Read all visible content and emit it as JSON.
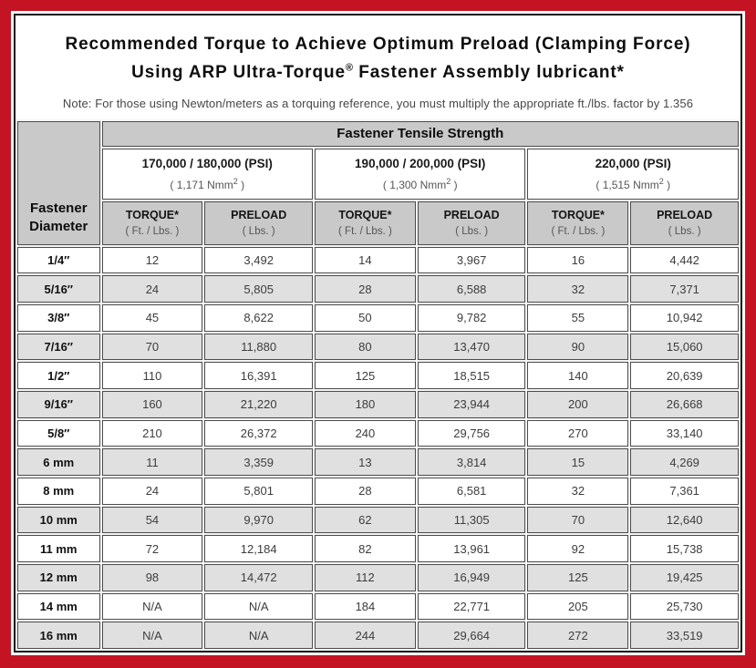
{
  "colors": {
    "frame_red": "#c41424",
    "header_gray": "#c9c9c9",
    "stripe_gray": "#e0e0e0",
    "inner_border": "#161616"
  },
  "header": {
    "title_line1": "Recommended Torque to Achieve Optimum Preload (Clamping Force)",
    "title_line2_pre": "Using ARP Ultra-Torque",
    "title_line2_sup": "®",
    "title_line2_post": " Fastener Assembly lubricant*",
    "note": "Note: For those using Newton/meters as a torquing reference, you must multiply the appropriate ft./lbs. factor by 1.356"
  },
  "table": {
    "corner_label_line1": "Fastener",
    "corner_label_line2": "Diameter",
    "tensile_header": "Fastener Tensile Strength",
    "strength_groups": [
      {
        "psi": "170,000 / 180,000 (PSI)",
        "nmm_pre": "( 1,171 Nmm",
        "nmm_sup": "2",
        "nmm_post": " )"
      },
      {
        "psi": "190,000 / 200,000 (PSI)",
        "nmm_pre": "( 1,300 Nmm",
        "nmm_sup": "2",
        "nmm_post": " )"
      },
      {
        "psi": "220,000 (PSI)",
        "nmm_pre": "( 1,515 Nmm",
        "nmm_sup": "2",
        "nmm_post": " )"
      }
    ],
    "col_headers": {
      "torque": "TORQUE*",
      "torque_unit": "( Ft. / Lbs. )",
      "preload": "PRELOAD",
      "preload_unit": "( Lbs. )"
    },
    "rows": [
      {
        "diameter": "1/4″",
        "values": [
          "12",
          "3,492",
          "14",
          "3,967",
          "16",
          "4,442"
        ]
      },
      {
        "diameter": "5/16″",
        "values": [
          "24",
          "5,805",
          "28",
          "6,588",
          "32",
          "7,371"
        ]
      },
      {
        "diameter": "3/8″",
        "values": [
          "45",
          "8,622",
          "50",
          "9,782",
          "55",
          "10,942"
        ]
      },
      {
        "diameter": "7/16″",
        "values": [
          "70",
          "11,880",
          "80",
          "13,470",
          "90",
          "15,060"
        ]
      },
      {
        "diameter": "1/2″",
        "values": [
          "110",
          "16,391",
          "125",
          "18,515",
          "140",
          "20,639"
        ]
      },
      {
        "diameter": "9/16″",
        "values": [
          "160",
          "21,220",
          "180",
          "23,944",
          "200",
          "26,668"
        ]
      },
      {
        "diameter": "5/8″",
        "values": [
          "210",
          "26,372",
          "240",
          "29,756",
          "270",
          "33,140"
        ]
      },
      {
        "diameter": "6 mm",
        "values": [
          "11",
          "3,359",
          "13",
          "3,814",
          "15",
          "4,269"
        ]
      },
      {
        "diameter": "8 mm",
        "values": [
          "24",
          "5,801",
          "28",
          "6,581",
          "32",
          "7,361"
        ]
      },
      {
        "diameter": "10 mm",
        "values": [
          "54",
          "9,970",
          "62",
          "11,305",
          "70",
          "12,640"
        ]
      },
      {
        "diameter": "11 mm",
        "values": [
          "72",
          "12,184",
          "82",
          "13,961",
          "92",
          "15,738"
        ]
      },
      {
        "diameter": "12 mm",
        "values": [
          "98",
          "14,472",
          "112",
          "16,949",
          "125",
          "19,425"
        ]
      },
      {
        "diameter": "14 mm",
        "values": [
          "N/A",
          "N/A",
          "184",
          "22,771",
          "205",
          "25,730"
        ]
      },
      {
        "diameter": "16 mm",
        "values": [
          "N/A",
          "N/A",
          "244",
          "29,664",
          "272",
          "33,519"
        ]
      }
    ]
  }
}
